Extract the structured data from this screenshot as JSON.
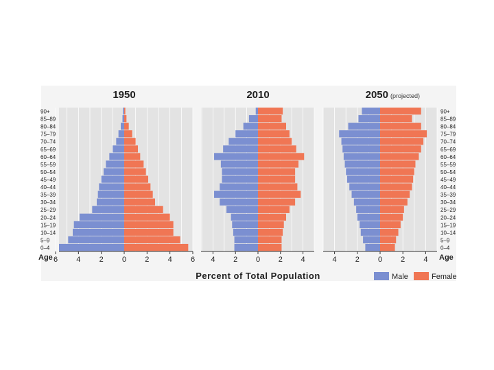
{
  "chart_data": {
    "type": "population-pyramid",
    "xlabel": "Percent of Total Population",
    "age_axis_label": "Age",
    "age_groups": [
      "90+",
      "85–89",
      "80–84",
      "75–79",
      "70–74",
      "65–69",
      "60–64",
      "55–59",
      "50–54",
      "45–49",
      "40–44",
      "35–39",
      "30–34",
      "25–29",
      "20–24",
      "15–19",
      "10–14",
      "5–9",
      "0–4"
    ],
    "legend": [
      {
        "name": "Male",
        "color": "#7b8fd1"
      },
      {
        "name": "Female",
        "color": "#f07654"
      }
    ],
    "panels": [
      {
        "title": "1950",
        "subtitle": "",
        "xlim": [
          -6,
          6
        ],
        "ticks": [
          -6,
          -4,
          -2,
          0,
          2,
          4,
          6
        ],
        "tick_labels": [
          "6",
          "4",
          "2",
          "0",
          "2",
          "4",
          "6"
        ],
        "male": [
          0.1,
          0.15,
          0.3,
          0.5,
          0.7,
          1.0,
          1.3,
          1.6,
          1.8,
          2.0,
          2.2,
          2.3,
          2.4,
          2.8,
          3.9,
          4.4,
          4.5,
          4.9,
          5.7
        ],
        "female": [
          0.1,
          0.2,
          0.4,
          0.7,
          1.0,
          1.2,
          1.4,
          1.7,
          1.9,
          2.1,
          2.3,
          2.5,
          2.7,
          3.4,
          4.0,
          4.3,
          4.3,
          4.9,
          5.6
        ]
      },
      {
        "title": "2010",
        "subtitle": "",
        "xlim": [
          -5,
          5
        ],
        "ticks": [
          -4,
          -2,
          0,
          2,
          4
        ],
        "tick_labels": [
          "4",
          "2",
          "0",
          "2",
          "4"
        ],
        "male": [
          0.2,
          0.8,
          1.3,
          2.0,
          2.6,
          3.1,
          3.9,
          3.3,
          3.2,
          3.2,
          3.4,
          3.9,
          3.4,
          2.8,
          2.4,
          2.3,
          2.2,
          2.1,
          2.1
        ],
        "female": [
          2.2,
          2.1,
          2.5,
          2.8,
          3.0,
          3.4,
          4.1,
          3.6,
          3.3,
          3.3,
          3.5,
          3.8,
          3.3,
          2.8,
          2.5,
          2.3,
          2.2,
          2.1,
          2.1
        ]
      },
      {
        "title": "2050",
        "subtitle": "(projected)",
        "xlim": [
          -5,
          5
        ],
        "ticks": [
          -4,
          -2,
          0,
          2,
          4
        ],
        "tick_labels": [
          "4",
          "2",
          "0",
          "2",
          "4"
        ],
        "male": [
          1.6,
          1.9,
          2.8,
          3.6,
          3.4,
          3.3,
          3.2,
          3.1,
          3.0,
          2.9,
          2.7,
          2.5,
          2.3,
          2.1,
          2.0,
          1.8,
          1.7,
          1.5,
          1.3
        ],
        "female": [
          3.6,
          2.8,
          3.6,
          4.1,
          3.8,
          3.6,
          3.4,
          3.1,
          3.0,
          2.9,
          2.8,
          2.6,
          2.4,
          2.1,
          2.0,
          1.8,
          1.6,
          1.4,
          1.3
        ]
      }
    ]
  }
}
